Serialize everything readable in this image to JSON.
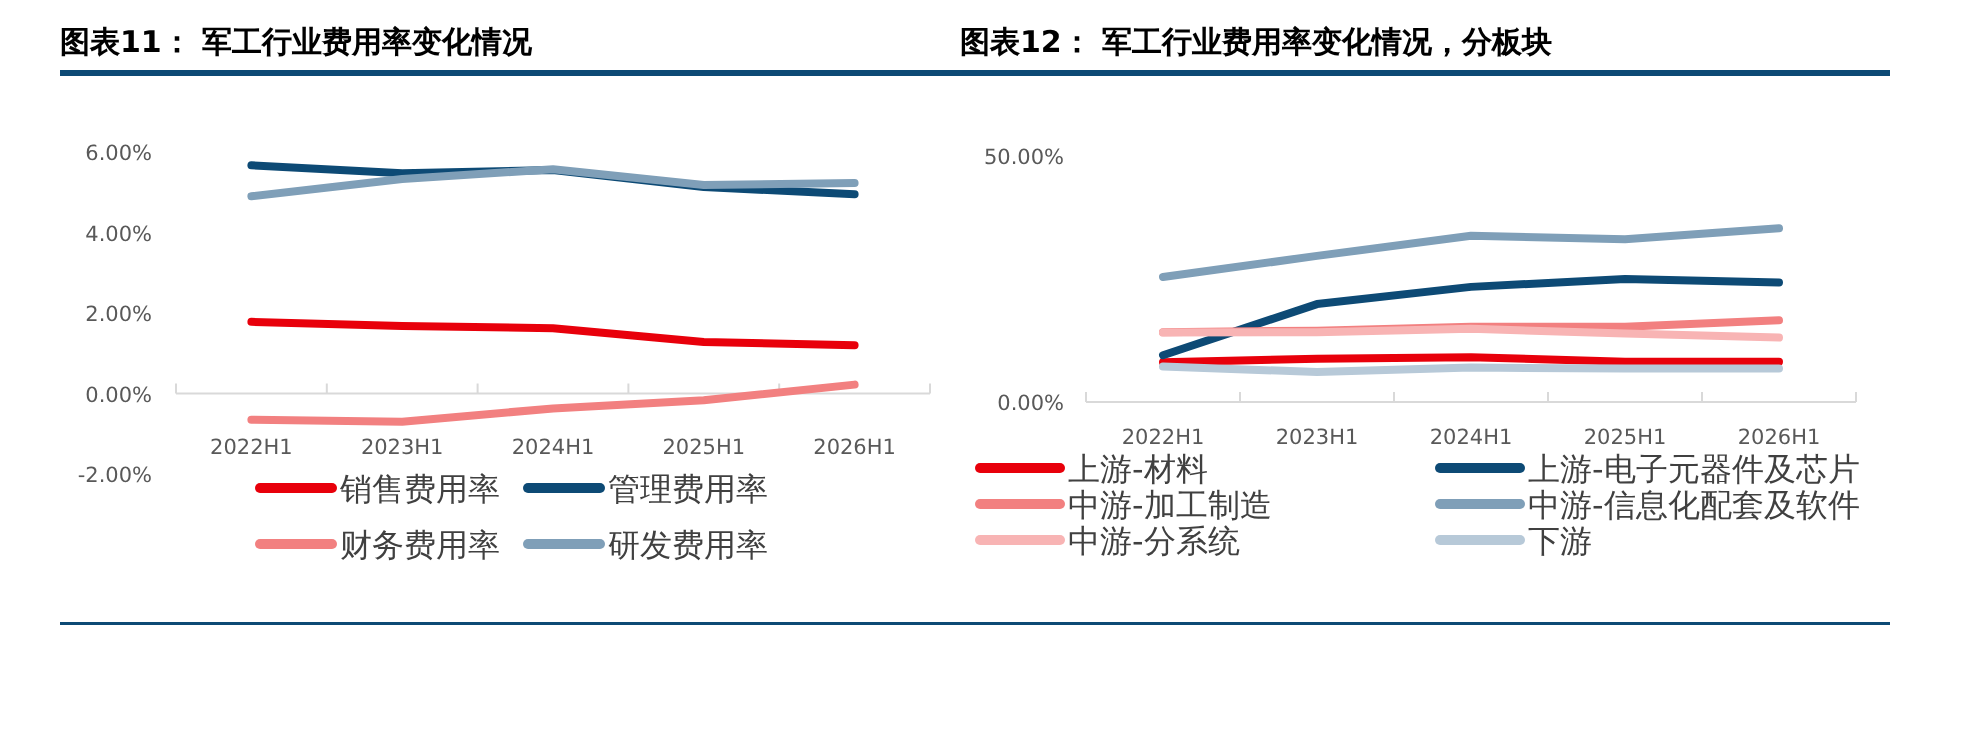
{
  "chart_data": [
    {
      "type": "line",
      "title": "图表11：  军工行业费用率变化情况",
      "categories": [
        "2022H1",
        "2023H1",
        "2024H1",
        "2025H1",
        "2026H1"
      ],
      "series": [
        {
          "name": "销售费用率",
          "color": "#e8000b",
          "values": [
            1.78,
            1.68,
            1.62,
            1.28,
            1.2
          ]
        },
        {
          "name": "管理费用率",
          "color": "#0d4a75",
          "values": [
            5.67,
            5.47,
            5.55,
            5.13,
            4.95
          ]
        },
        {
          "name": "财务费用率",
          "color": "#f28080",
          "values": [
            -0.65,
            -0.7,
            -0.37,
            -0.17,
            0.22
          ]
        },
        {
          "name": "研发费用率",
          "color": "#7f9fb8",
          "values": [
            4.9,
            5.33,
            5.57,
            5.18,
            5.23
          ]
        }
      ],
      "ylim": [
        -2,
        6
      ],
      "yticks": [
        {
          "value": -2,
          "label": "-2.00%"
        },
        {
          "value": 0,
          "label": "0.00%"
        },
        {
          "value": 2,
          "label": "2.00%"
        },
        {
          "value": 4,
          "label": "4.00%"
        },
        {
          "value": 6,
          "label": "6.00%"
        }
      ],
      "legend": "bottom",
      "grid": false
    },
    {
      "type": "line",
      "title": "图表12：  军工行业费用率变化情况，分板块",
      "categories": [
        "2022H1",
        "2023H1",
        "2024H1",
        "2025H1",
        "2026H1"
      ],
      "series": [
        {
          "name": "上游-材料",
          "color": "#e8000b",
          "values": [
            8.1,
            8.8,
            9.1,
            8.2,
            8.2
          ]
        },
        {
          "name": "上游-电子元器件及芯片",
          "color": "#0d4a75",
          "values": [
            9.5,
            19.9,
            23.4,
            25,
            24.3
          ]
        },
        {
          "name": "中游-加工制造",
          "color": "#f28080",
          "values": [
            14.2,
            14.5,
            15.3,
            15.3,
            16.6
          ]
        },
        {
          "name": "中游-信息化配套及软件",
          "color": "#7f9fb8",
          "values": [
            25.4,
            29.7,
            33.8,
            33.1,
            35.3
          ]
        },
        {
          "name": "中游-分系统",
          "color": "#f8b4b4",
          "values": [
            14.1,
            14.2,
            14.9,
            13.9,
            13.1
          ]
        },
        {
          "name": "下游",
          "color": "#b7c9d8",
          "values": [
            7.2,
            6.1,
            7.0,
            6.8,
            6.8
          ]
        }
      ],
      "ylim": [
        0,
        50
      ],
      "yticks": [
        {
          "value": 0,
          "label": "0.00%"
        },
        {
          "value": 50,
          "label": "50.00%"
        }
      ],
      "legend": "bottom",
      "grid": false
    }
  ]
}
